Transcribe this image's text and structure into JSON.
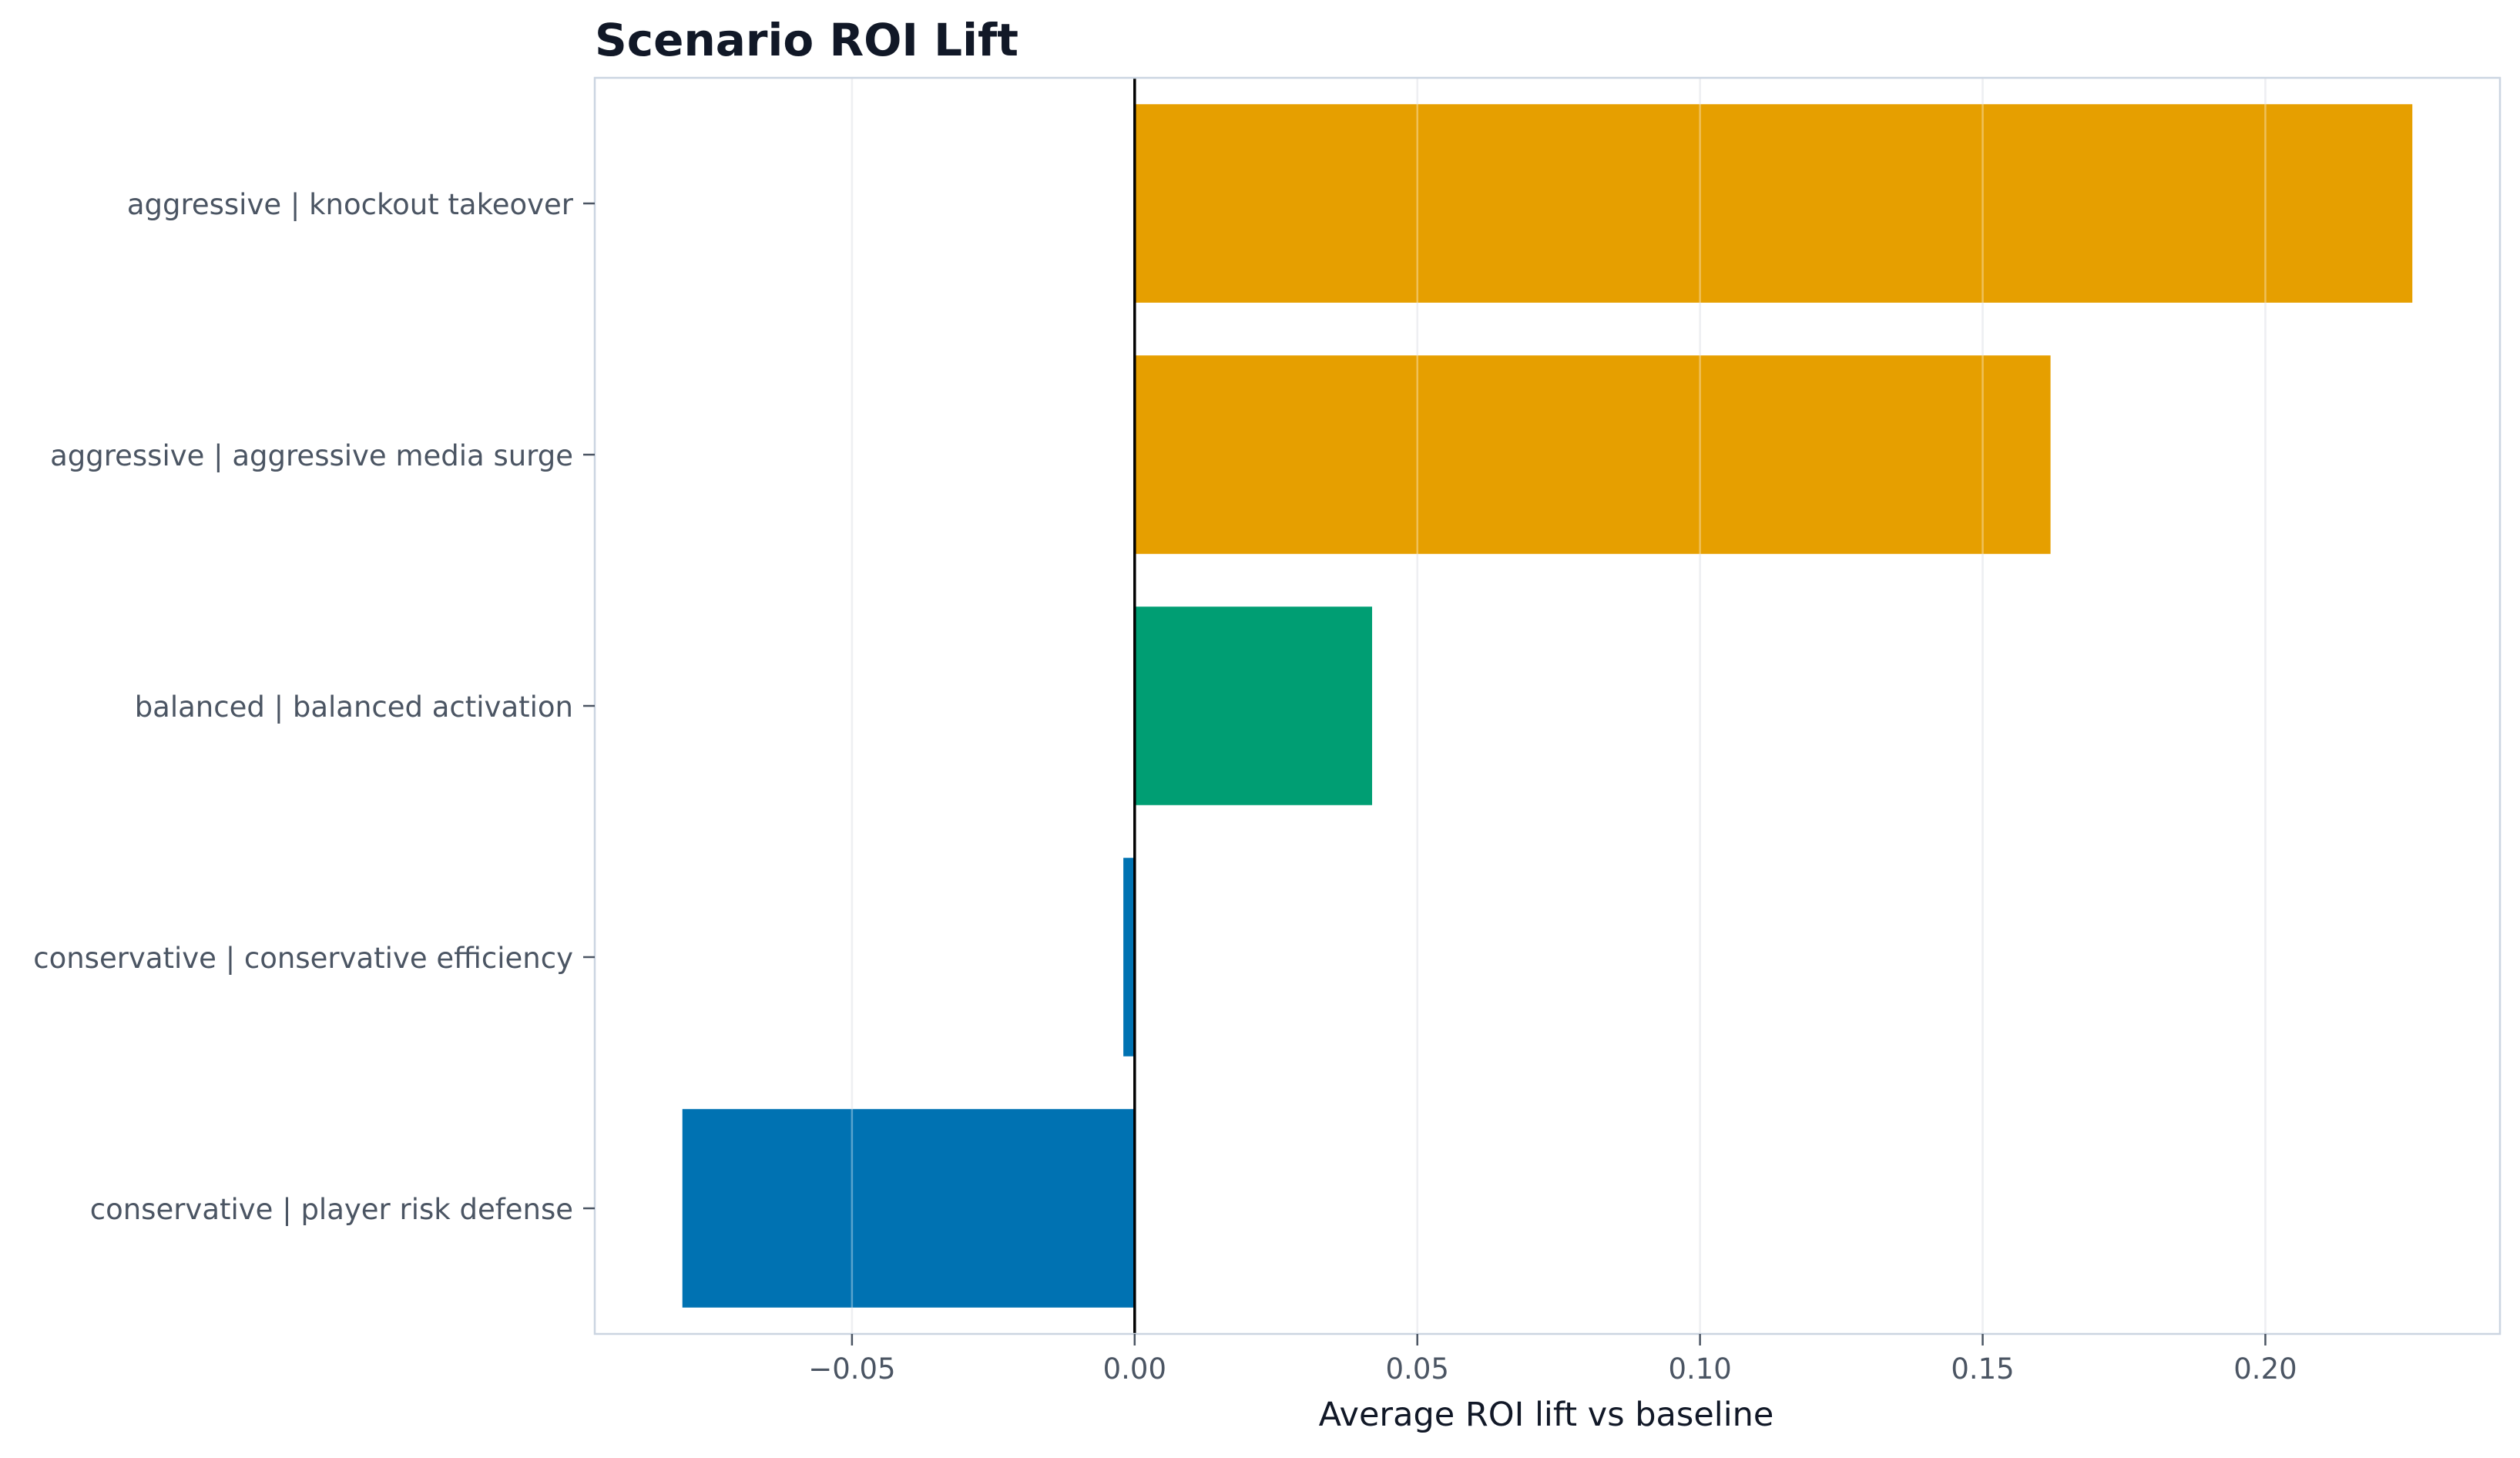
{
  "chart_data": {
    "type": "bar",
    "orientation": "horizontal",
    "title": "Scenario ROI Lift",
    "xlabel": "Average ROI lift vs baseline",
    "ylabel": "",
    "categories": [
      "aggressive | knockout takeover",
      "aggressive | aggressive media surge",
      "balanced | balanced activation",
      "conservative | conservative efficiency",
      "conservative | player risk defense"
    ],
    "values": [
      0.226,
      0.162,
      0.042,
      -0.002,
      -0.08
    ],
    "bar_colors": [
      "#e69f00",
      "#e69f00",
      "#009e73",
      "#0072b2",
      "#0072b2"
    ],
    "xlim": [
      -0.0955,
      0.2415
    ],
    "xticks": [
      -0.05,
      0.0,
      0.05,
      0.1,
      0.15,
      0.2
    ],
    "xtick_labels": [
      "−0.05",
      "0.00",
      "0.05",
      "0.10",
      "0.15",
      "0.20"
    ],
    "grid": "x",
    "zero_line": true,
    "legend": "none",
    "colors": {
      "title": "#111827",
      "tick_label": "#4b5563",
      "axis_label": "#111827",
      "spine": "#cbd5e1",
      "grid": "#e5e7eb",
      "zero_line": "#000000"
    }
  }
}
